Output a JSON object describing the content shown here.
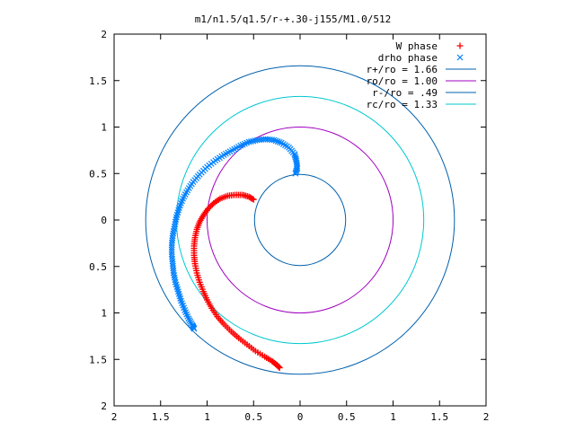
{
  "chart_data": {
    "type": "scatter",
    "title": "m1/n1.5/q1.5/r-+.30-j155/M1.0/512",
    "xlim": [
      -2,
      2
    ],
    "ylim": [
      -2,
      2
    ],
    "grid": false,
    "legend_position": "top-right",
    "x_tick_values": [
      -2,
      -1.5,
      -1,
      -0.5,
      0,
      0.5,
      1,
      1.5,
      2
    ],
    "x_tick_labels": [
      "2",
      "1.5",
      "1",
      "0.5",
      "0",
      "0.5",
      "1",
      "1.5",
      "2"
    ],
    "y_tick_values": [
      2,
      1.5,
      1,
      0.5,
      0,
      -0.5,
      -1,
      -1.5,
      -2
    ],
    "y_tick_labels": [
      "2",
      "1.5",
      "1",
      "0.5",
      "0",
      "0.5",
      "1",
      "1.5",
      "2"
    ],
    "series": [
      {
        "name": "W phase",
        "kind": "points",
        "marker": "plus",
        "color": "#ff0000",
        "points": [
          [
            -0.5,
            0.22
          ],
          [
            -0.55,
            0.25
          ],
          [
            -0.62,
            0.27
          ],
          [
            -0.7,
            0.27
          ],
          [
            -0.78,
            0.26
          ],
          [
            -0.86,
            0.23
          ],
          [
            -0.93,
            0.18
          ],
          [
            -0.99,
            0.12
          ],
          [
            -1.04,
            0.05
          ],
          [
            -1.08,
            -0.02
          ],
          [
            -1.11,
            -0.1
          ],
          [
            -1.13,
            -0.19
          ],
          [
            -1.14,
            -0.28
          ],
          [
            -1.14,
            -0.38
          ],
          [
            -1.13,
            -0.47
          ],
          [
            -1.11,
            -0.57
          ],
          [
            -1.08,
            -0.67
          ],
          [
            -1.04,
            -0.77
          ],
          [
            -1.0,
            -0.86
          ],
          [
            -0.95,
            -0.95
          ],
          [
            -0.89,
            -1.04
          ],
          [
            -0.82,
            -1.12
          ],
          [
            -0.74,
            -1.2
          ],
          [
            -0.66,
            -1.27
          ],
          [
            -0.57,
            -1.34
          ],
          [
            -0.48,
            -1.41
          ],
          [
            -0.38,
            -1.47
          ],
          [
            -0.3,
            -1.52
          ],
          [
            -0.25,
            -1.56
          ],
          [
            -0.22,
            -1.59
          ]
        ]
      },
      {
        "name": "drho phase",
        "kind": "points",
        "marker": "cross",
        "color": "#0080ff",
        "points": [
          [
            -0.05,
            0.5
          ],
          [
            -0.03,
            0.56
          ],
          [
            -0.04,
            0.64
          ],
          [
            -0.06,
            0.71
          ],
          [
            -0.12,
            0.78
          ],
          [
            -0.2,
            0.83
          ],
          [
            -0.28,
            0.86
          ],
          [
            -0.37,
            0.87
          ],
          [
            -0.46,
            0.86
          ],
          [
            -0.55,
            0.84
          ],
          [
            -0.64,
            0.8
          ],
          [
            -0.73,
            0.75
          ],
          [
            -0.82,
            0.7
          ],
          [
            -0.91,
            0.64
          ],
          [
            -1.0,
            0.57
          ],
          [
            -1.08,
            0.49
          ],
          [
            -1.15,
            0.41
          ],
          [
            -1.21,
            0.32
          ],
          [
            -1.26,
            0.23
          ],
          [
            -1.3,
            0.13
          ],
          [
            -1.33,
            0.03
          ],
          [
            -1.35,
            -0.07
          ],
          [
            -1.37,
            -0.17
          ],
          [
            -1.38,
            -0.27
          ],
          [
            -1.38,
            -0.37
          ],
          [
            -1.37,
            -0.47
          ],
          [
            -1.36,
            -0.57
          ],
          [
            -1.34,
            -0.67
          ],
          [
            -1.31,
            -0.77
          ],
          [
            -1.28,
            -0.87
          ],
          [
            -1.24,
            -0.97
          ],
          [
            -1.2,
            -1.06
          ],
          [
            -1.16,
            -1.13
          ],
          [
            -1.14,
            -1.17
          ]
        ]
      },
      {
        "name": "r+/ro = 1.66",
        "kind": "circle",
        "radius": 1.66,
        "color": "#0060ad"
      },
      {
        "name": "ro/ro = 1.00",
        "kind": "circle",
        "radius": 1.0,
        "color": "#a000c0"
      },
      {
        "name": "r-/ro = .49",
        "kind": "circle",
        "radius": 0.49,
        "color": "#0060ad"
      },
      {
        "name": "rc/ro = 1.33",
        "kind": "circle",
        "radius": 1.33,
        "color": "#00c8d0"
      }
    ]
  }
}
